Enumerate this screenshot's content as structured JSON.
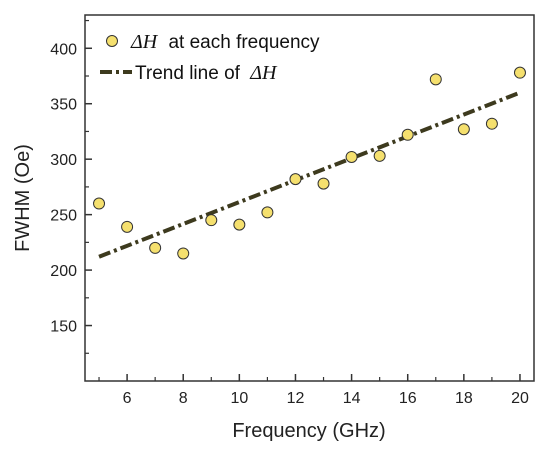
{
  "chart_data": {
    "type": "scatter",
    "title": "",
    "xlabel": "Frequency (GHz)",
    "ylabel": "FWHM (Oe)",
    "xlim": [
      4.5,
      20.5
    ],
    "ylim": [
      100,
      430
    ],
    "x_ticks": [
      6,
      8,
      10,
      12,
      14,
      16,
      18,
      20
    ],
    "y_ticks": [
      150,
      200,
      250,
      300,
      350,
      400
    ],
    "grid": false,
    "legend_position": "top-left",
    "series": [
      {
        "name": "at each frequency",
        "name_prefix": "ΔH",
        "kind": "scatter",
        "marker_color": "#f5e06e",
        "marker_edge": "#333333",
        "x": [
          5,
          6,
          7,
          8,
          9,
          10,
          11,
          12,
          13,
          14,
          15,
          16,
          17,
          18,
          19,
          20
        ],
        "y": [
          260,
          239,
          220,
          215,
          245,
          241,
          252,
          282,
          278,
          302,
          303,
          322,
          372,
          327,
          332,
          378
        ]
      },
      {
        "name": "Trend line of",
        "name_suffix": "ΔH",
        "kind": "line",
        "style": "dash-dot",
        "color": "#3d3a1e",
        "x": [
          5,
          20
        ],
        "y": [
          212,
          360
        ]
      }
    ]
  }
}
